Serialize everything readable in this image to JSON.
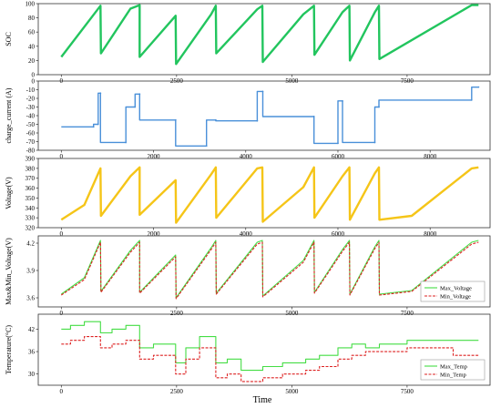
{
  "figure": {
    "xlabel": "Time"
  },
  "chart_data": [
    {
      "type": "line",
      "ylabel": "SOC",
      "xlim": [
        -500,
        9300
      ],
      "ylim": [
        0,
        100
      ],
      "xticks": [
        0,
        2500,
        5000,
        7500
      ],
      "yticks": [
        0,
        20,
        40,
        60,
        80,
        100
      ],
      "series": [
        {
          "color": "#22c55e",
          "x": [
            0,
            850,
            860,
            1500,
            1700,
            1700,
            2480,
            2490,
            3250,
            3350,
            3360,
            4250,
            4360,
            4370,
            5250,
            5480,
            5490,
            6100,
            6250,
            6260,
            6800,
            6890,
            6900,
            8900,
            9050
          ],
          "y": [
            25,
            97,
            30,
            93,
            98,
            25,
            83,
            15,
            85,
            97,
            30,
            92,
            97,
            18,
            85,
            97,
            28,
            88,
            97,
            20,
            88,
            97,
            22,
            98,
            98
          ]
        }
      ]
    },
    {
      "type": "line",
      "ylabel": "charge_current (A)",
      "xlim": [
        -500,
        9300
      ],
      "ylim": [
        -80,
        0
      ],
      "xticks": [
        0,
        2000,
        4000,
        6000,
        8000
      ],
      "yticks": [
        0,
        -10,
        -20,
        -30,
        -40,
        -50,
        -60,
        -70,
        -80
      ],
      "series": [
        {
          "color": "#4a90d9",
          "x": [
            0,
            700,
            700,
            800,
            800,
            850,
            850,
            1400,
            1400,
            1600,
            1600,
            1700,
            1700,
            2480,
            2480,
            3150,
            3150,
            3350,
            3350,
            4250,
            4250,
            4370,
            4370,
            5480,
            5480,
            6000,
            6000,
            6100,
            6100,
            6800,
            6800,
            6890,
            6890,
            8900,
            8900,
            9050
          ],
          "y": [
            -53,
            -53,
            -50,
            -50,
            -14,
            -14,
            -71,
            -71,
            -30,
            -30,
            -15,
            -15,
            -45,
            -45,
            -75,
            -75,
            -45,
            -45,
            -46,
            -46,
            -12,
            -12,
            -41,
            -41,
            -72,
            -72,
            -23,
            -23,
            -71,
            -71,
            -30,
            -30,
            -22,
            -22,
            -7,
            -7
          ]
        }
      ]
    },
    {
      "type": "line",
      "ylabel": "Voltage(V)",
      "xlim": [
        -500,
        9300
      ],
      "ylim": [
        320,
        390
      ],
      "xticks": [
        0,
        2000,
        4000,
        6000,
        8000
      ],
      "yticks": [
        320,
        330,
        340,
        350,
        360,
        370,
        380,
        390
      ],
      "series": [
        {
          "color": "#f5c518",
          "x": [
            0,
            500,
            850,
            860,
            1500,
            1700,
            1700,
            2480,
            2490,
            3250,
            3350,
            3360,
            4250,
            4360,
            4370,
            5250,
            5480,
            5490,
            6100,
            6250,
            6260,
            6800,
            6890,
            6900,
            7600,
            8900,
            9050
          ],
          "y": [
            328,
            343,
            380,
            332,
            372,
            381,
            333,
            368,
            325,
            374,
            381,
            330,
            380,
            381,
            326,
            361,
            381,
            330,
            372,
            381,
            328,
            375,
            381,
            328,
            332,
            380,
            381
          ]
        }
      ]
    },
    {
      "type": "line",
      "ylabel": "Max&Min_Voltage(V)",
      "xlim": [
        -500,
        9300
      ],
      "ylim": [
        3.5,
        4.28
      ],
      "xticks": [
        0,
        2500,
        5000,
        7500
      ],
      "yticks": [
        3.6,
        3.9,
        4.2
      ],
      "ytick_labels": [
        "3.6",
        "3.9",
        "4.2"
      ],
      "legend": {
        "position": "bottom-right",
        "entries": [
          "Max_Voltage",
          "Min_Voltage"
        ]
      },
      "series": [
        {
          "name": "Max_Voltage",
          "color": "#44dd44",
          "x": [
            0,
            500,
            850,
            860,
            1500,
            1700,
            1700,
            2480,
            2490,
            3250,
            3350,
            3360,
            4250,
            4360,
            4370,
            5250,
            5480,
            5490,
            6100,
            6250,
            6260,
            6800,
            6890,
            6900,
            7600,
            8900,
            9050
          ],
          "y": [
            3.64,
            3.82,
            4.23,
            3.67,
            4.12,
            4.23,
            3.66,
            4.07,
            3.6,
            4.15,
            4.23,
            3.65,
            4.21,
            4.23,
            3.62,
            4.01,
            4.23,
            3.66,
            4.13,
            4.23,
            3.64,
            4.16,
            4.23,
            3.64,
            3.68,
            4.21,
            4.23
          ]
        },
        {
          "name": "Min_Voltage",
          "color": "#dd2222",
          "x": [
            0,
            500,
            850,
            860,
            1500,
            1700,
            1700,
            2480,
            2490,
            3250,
            3350,
            3360,
            4250,
            4360,
            4370,
            5250,
            5480,
            5490,
            6100,
            6250,
            6260,
            6800,
            6890,
            6900,
            7600,
            8900,
            9050
          ],
          "y": [
            3.63,
            3.8,
            4.21,
            3.66,
            4.1,
            4.21,
            3.65,
            4.05,
            3.59,
            4.13,
            4.21,
            3.64,
            4.19,
            4.21,
            3.61,
            3.99,
            4.21,
            3.65,
            4.11,
            4.21,
            3.63,
            4.14,
            4.21,
            3.63,
            3.67,
            4.19,
            4.21
          ]
        }
      ]
    },
    {
      "type": "line",
      "ylabel": "Temperature(°C)",
      "xlim": [
        -500,
        9300
      ],
      "ylim": [
        27,
        46
      ],
      "xticks": [
        0,
        2500,
        5000,
        7500
      ],
      "yticks": [
        30,
        36,
        42
      ],
      "legend": {
        "position": "bottom-right",
        "entries": [
          "Max_Temp",
          "Min_Temp"
        ]
      },
      "series": [
        {
          "name": "Max_Temp",
          "color": "#44dd44",
          "x": [
            0,
            200,
            200,
            500,
            500,
            850,
            850,
            1100,
            1100,
            1400,
            1400,
            1700,
            1700,
            2000,
            2000,
            2480,
            2480,
            2700,
            2700,
            3000,
            3000,
            3350,
            3350,
            3600,
            3600,
            3900,
            3900,
            4370,
            4370,
            4800,
            4800,
            5300,
            5300,
            5600,
            5600,
            6000,
            6000,
            6300,
            6300,
            6600,
            6600,
            6900,
            6900,
            7500,
            7500,
            9050
          ],
          "y": [
            42,
            42,
            43,
            43,
            44,
            44,
            41,
            41,
            42,
            42,
            43,
            43,
            37,
            37,
            38,
            38,
            33,
            33,
            37,
            37,
            40,
            40,
            33,
            33,
            34,
            34,
            31,
            31,
            32,
            32,
            33,
            33,
            34,
            34,
            35,
            35,
            37,
            37,
            38,
            38,
            37,
            37,
            38,
            38,
            39,
            39
          ]
        },
        {
          "name": "Min_Temp",
          "color": "#dd2222",
          "x": [
            0,
            200,
            200,
            500,
            500,
            850,
            850,
            1100,
            1100,
            1400,
            1400,
            1700,
            1700,
            2000,
            2000,
            2480,
            2480,
            2700,
            2700,
            3000,
            3000,
            3350,
            3350,
            3600,
            3600,
            3900,
            3900,
            4370,
            4370,
            4800,
            4800,
            5300,
            5300,
            5600,
            5600,
            6000,
            6000,
            6300,
            6300,
            6600,
            6600,
            6900,
            6900,
            7500,
            7500,
            8500,
            8500,
            9050
          ],
          "y": [
            38,
            38,
            39,
            39,
            40,
            40,
            37,
            37,
            38,
            38,
            39,
            39,
            34,
            34,
            35,
            35,
            30,
            30,
            34,
            34,
            37,
            37,
            29,
            29,
            30,
            30,
            28,
            28,
            29,
            29,
            30,
            30,
            31,
            31,
            32,
            32,
            34,
            34,
            35,
            35,
            36,
            36,
            36,
            36,
            37,
            37,
            35,
            35
          ]
        }
      ]
    }
  ]
}
